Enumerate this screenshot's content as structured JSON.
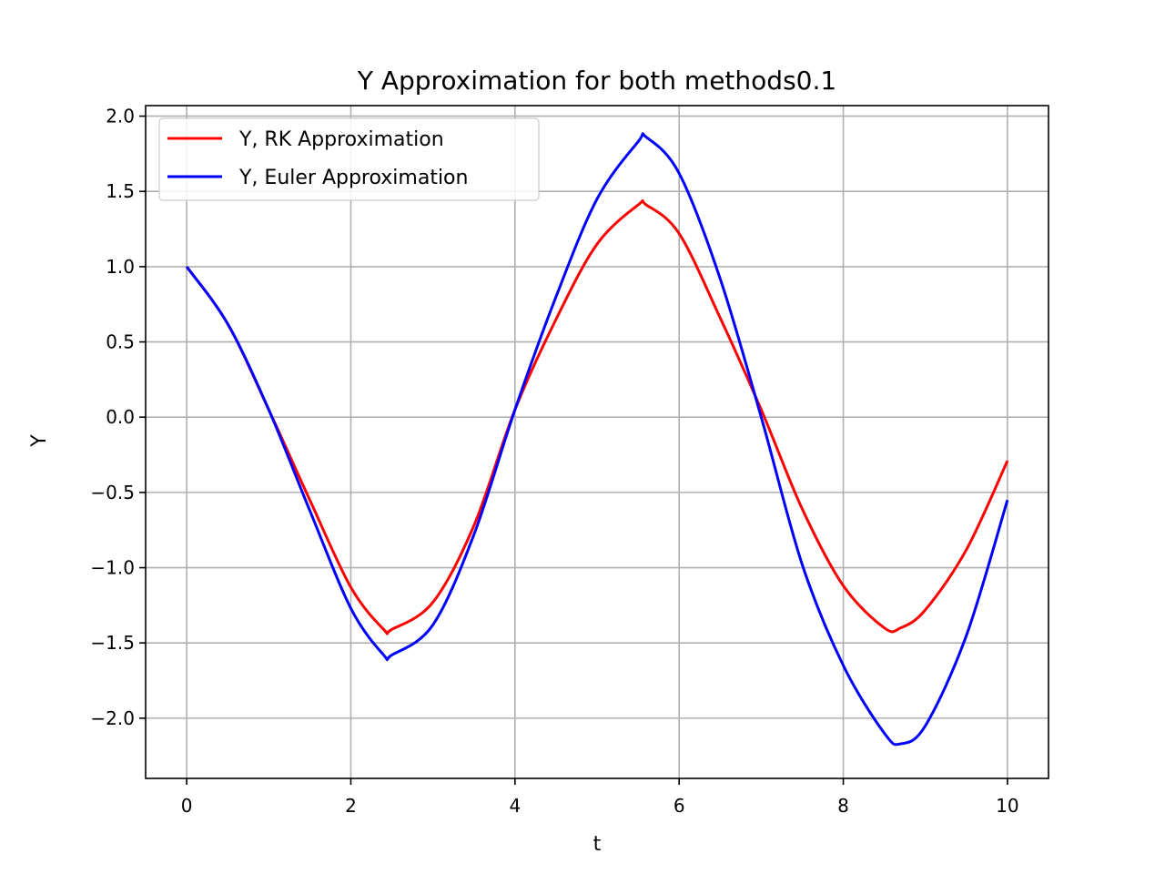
{
  "chart_data": {
    "type": "line",
    "title": "Y Approximation for both methods0.1",
    "xlabel": "t",
    "ylabel": "Y",
    "xlim": [
      -0.5,
      10.5
    ],
    "ylim": [
      -2.4,
      2.07
    ],
    "xticks": [
      0,
      2,
      4,
      6,
      8,
      10
    ],
    "yticks": [
      -2.0,
      -1.5,
      -1.0,
      -0.5,
      0.0,
      0.5,
      1.0,
      1.5,
      2.0
    ],
    "xtick_labels": [
      "0",
      "2",
      "4",
      "6",
      "8",
      "10"
    ],
    "ytick_labels": [
      "−2.0",
      "−1.5",
      "−1.0",
      "−0.5",
      "0.0",
      "0.5",
      "1.0",
      "1.5",
      "2.0"
    ],
    "grid": true,
    "legend_position": "upper-left",
    "x": [
      0,
      0.5,
      1,
      1.5,
      2,
      2.4,
      2.5,
      3,
      3.5,
      4,
      4.5,
      5,
      5.5,
      5.6,
      6,
      6.5,
      7,
      7.5,
      8,
      8.5,
      8.7,
      9,
      9.5,
      10
    ],
    "series": [
      {
        "name": "Y, RK Approximation",
        "color": "#ff0000",
        "values": [
          1.0,
          0.62,
          0.05,
          -0.55,
          -1.13,
          -1.41,
          -1.41,
          -1.23,
          -0.72,
          0.05,
          0.65,
          1.15,
          1.41,
          1.41,
          1.22,
          0.66,
          0.05,
          -0.61,
          -1.12,
          -1.4,
          -1.4,
          -1.28,
          -0.88,
          -0.29
        ]
      },
      {
        "name": "Y, Euler Approximation",
        "color": "#0000ff",
        "values": [
          1.0,
          0.62,
          0.05,
          -0.62,
          -1.27,
          -1.58,
          -1.58,
          -1.38,
          -0.78,
          0.05,
          0.8,
          1.45,
          1.83,
          1.86,
          1.62,
          0.92,
          0.0,
          -0.98,
          -1.65,
          -2.1,
          -2.17,
          -2.05,
          -1.45,
          -0.55
        ]
      }
    ]
  }
}
